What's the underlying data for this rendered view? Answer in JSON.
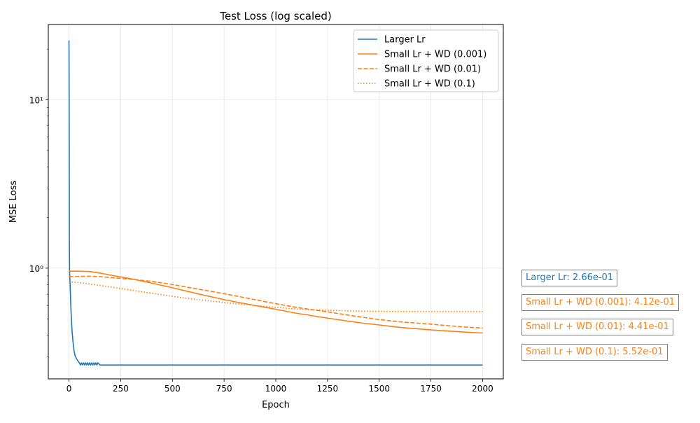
{
  "chart_data": {
    "type": "line",
    "title": "Test Loss (log scaled)",
    "xlabel": "Epoch",
    "ylabel": "MSE Loss",
    "yscale": "log",
    "xlim": [
      -100,
      2100
    ],
    "ylim": [
      0.22,
      28
    ],
    "xticks": [
      0,
      250,
      500,
      750,
      1000,
      1250,
      1500,
      1750,
      2000
    ],
    "xtick_labels": [
      "0",
      "250",
      "500",
      "750",
      "1000",
      "1250",
      "1500",
      "1750",
      "2000"
    ],
    "yticks": [
      1,
      10
    ],
    "ytick_labels": [
      "10⁰",
      "10¹"
    ],
    "grid": true,
    "legend_position": "top-right",
    "series": [
      {
        "name": "Larger Lr",
        "color": "#1f77b4",
        "linestyle": "solid",
        "x": [
          0,
          1,
          2,
          3,
          5,
          8,
          10,
          15,
          20,
          25,
          30,
          40,
          50,
          60,
          80,
          100,
          150,
          200,
          300,
          500,
          1000,
          1500,
          2000
        ],
        "y": [
          22.5,
          8.0,
          1.3,
          0.95,
          0.82,
          0.65,
          0.55,
          0.42,
          0.36,
          0.32,
          0.3,
          0.285,
          0.275,
          0.27,
          0.268,
          0.267,
          0.266,
          0.266,
          0.266,
          0.266,
          0.266,
          0.266,
          0.266
        ]
      },
      {
        "name": "Small Lr + WD (0.001)",
        "color": "#ff7f0e",
        "linestyle": "solid",
        "x": [
          0,
          50,
          100,
          150,
          200,
          300,
          400,
          500,
          600,
          750,
          900,
          1000,
          1100,
          1250,
          1400,
          1500,
          1600,
          1750,
          1900,
          2000
        ],
        "y": [
          0.96,
          0.96,
          0.955,
          0.935,
          0.91,
          0.865,
          0.815,
          0.765,
          0.715,
          0.65,
          0.6,
          0.57,
          0.54,
          0.505,
          0.475,
          0.46,
          0.445,
          0.43,
          0.418,
          0.412
        ]
      },
      {
        "name": "Small Lr + WD (0.01)",
        "color": "#ff7f0e",
        "linestyle": "dashed",
        "x": [
          0,
          50,
          100,
          150,
          200,
          300,
          400,
          500,
          600,
          750,
          900,
          1000,
          1100,
          1250,
          1400,
          1500,
          1600,
          1750,
          1900,
          2000
        ],
        "y": [
          0.89,
          0.895,
          0.895,
          0.89,
          0.88,
          0.86,
          0.835,
          0.8,
          0.76,
          0.705,
          0.65,
          0.615,
          0.585,
          0.55,
          0.515,
          0.495,
          0.48,
          0.465,
          0.448,
          0.441
        ]
      },
      {
        "name": "Small Lr + WD (0.1)",
        "color": "#ff7f0e",
        "linestyle": "dotted",
        "x": [
          0,
          50,
          100,
          150,
          200,
          300,
          400,
          500,
          600,
          750,
          900,
          1000,
          1100,
          1250,
          1400,
          1500,
          1600,
          1750,
          1900,
          2000
        ],
        "y": [
          0.83,
          0.82,
          0.805,
          0.79,
          0.775,
          0.74,
          0.71,
          0.68,
          0.655,
          0.625,
          0.6,
          0.585,
          0.572,
          0.562,
          0.556,
          0.554,
          0.553,
          0.552,
          0.552,
          0.552
        ]
      }
    ],
    "annotations": [
      {
        "text": "Larger Lr: 2.66e-01",
        "color": "#1f77b4"
      },
      {
        "text": "Small Lr + WD (0.001): 4.12e-01",
        "color": "#ff7f0e"
      },
      {
        "text": "Small Lr + WD (0.01): 4.41e-01",
        "color": "#ff7f0e"
      },
      {
        "text": "Small Lr + WD (0.1): 5.52e-01",
        "color": "#ff7f0e"
      }
    ]
  }
}
